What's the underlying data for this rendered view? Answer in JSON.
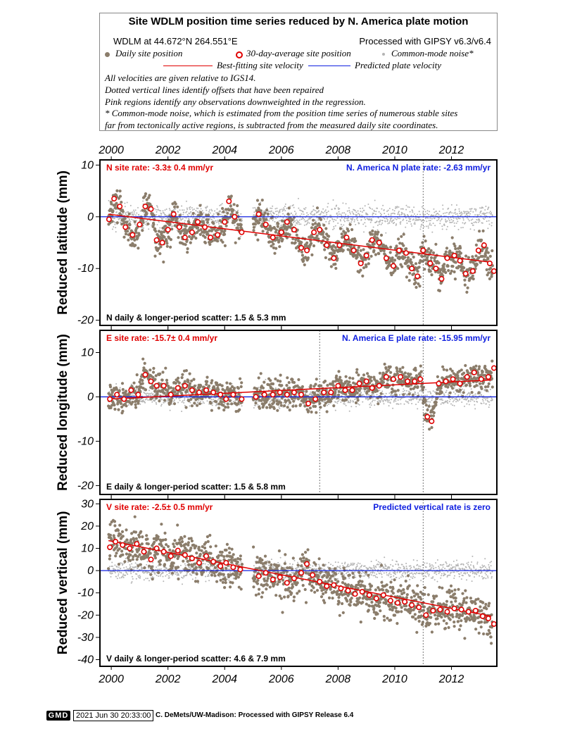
{
  "header": {
    "title": "Site WDLM position time series reduced by N. America plate motion",
    "location": "WDLM at 44.672°N 264.551°E",
    "processed": "Processed with GIPSY v6.3/v6.4",
    "legend_daily": "Daily site position",
    "legend_avg": "30-day-average site position",
    "legend_cm": "Common-mode noise*",
    "legend_fit": "Best-fitting site velocity",
    "legend_pred": "Predicted plate velocity",
    "note1": "All velocities are given relative to IGS14.",
    "note2": "Dotted vertical lines identify offsets that have been repaired",
    "note3": "Pink regions identify any observations downweighted in the regression.",
    "note4": "* Common-mode noise, which is estimated from the position time series of numerous stable sites",
    "note5": "far from tectonically active regions, is subtracted from the measured daily site coordinates."
  },
  "footer": {
    "badge": "GMD",
    "date": "2021 Jun 30 20:33:00",
    "credit": "C. DeMets/UW-Madison: Processed with GIPSY Release 6.4"
  },
  "colors": {
    "daily": "#8b7d6b",
    "common_mode": "#b4b4b4",
    "fit": "#e00000",
    "predicted": "#1020e0",
    "avg_fill": "#ffffff",
    "avg_stroke": "#e00000"
  },
  "chart_data": [
    {
      "type": "scatter",
      "component": "N",
      "ylabel": "Reduced latitude (mm)",
      "xlim": [
        1999.6,
        2013.6
      ],
      "ylim": [
        -21,
        11
      ],
      "yticks": [
        10,
        0,
        -10,
        -20
      ],
      "xticks": [
        2000,
        2002,
        2004,
        2006,
        2008,
        2010,
        2012
      ],
      "site_rate_label": "N site rate:  -3.3± 0.4 mm/yr",
      "plate_rate_label": "N. America N plate rate: -2.63 mm/yr",
      "scatter_label": "N daily & longer-period scatter:   1.5 &   5.3 mm",
      "offsets": [
        2011.0
      ],
      "fit_line": {
        "x": [
          1999.9,
          2013.4
        ],
        "y": [
          0.5,
          -8.8
        ]
      },
      "predicted_line": {
        "y": 0
      },
      "avg_points": [
        [
          1999.92,
          -0.5
        ],
        [
          2000.1,
          3.5
        ],
        [
          2000.3,
          2.0
        ],
        [
          2000.5,
          -2.0
        ],
        [
          2000.75,
          -3.5
        ],
        [
          2001.0,
          -1.5
        ],
        [
          2001.2,
          2.0
        ],
        [
          2001.4,
          1.5
        ],
        [
          2001.6,
          -4.5
        ],
        [
          2001.8,
          -5.0
        ],
        [
          2002.0,
          -2.5
        ],
        [
          2002.2,
          0.5
        ],
        [
          2002.4,
          -2.0
        ],
        [
          2002.6,
          -4.0
        ],
        [
          2002.85,
          -3.0
        ],
        [
          2003.05,
          -1.0
        ],
        [
          2003.3,
          -2.0
        ],
        [
          2003.5,
          -4.0
        ],
        [
          2003.75,
          -3.5
        ],
        [
          2004.0,
          -1.0
        ],
        [
          2004.15,
          3.0
        ],
        [
          2004.35,
          0.0
        ],
        [
          2004.6,
          -3.0
        ],
        [
          2005.2,
          0.5
        ],
        [
          2005.45,
          -1.5
        ],
        [
          2005.7,
          -4.0
        ],
        [
          2006.0,
          -3.0
        ],
        [
          2006.2,
          -1.0
        ],
        [
          2006.45,
          -2.5
        ],
        [
          2006.7,
          -6.0
        ],
        [
          2006.9,
          -6.5
        ],
        [
          2007.15,
          -3.0
        ],
        [
          2007.35,
          -2.5
        ],
        [
          2007.6,
          -5.5
        ],
        [
          2007.85,
          -8.0
        ],
        [
          2008.05,
          -5.5
        ],
        [
          2008.3,
          -4.0
        ],
        [
          2008.55,
          -6.5
        ],
        [
          2008.8,
          -9.0
        ],
        [
          2009.0,
          -7.5
        ],
        [
          2009.2,
          -4.5
        ],
        [
          2009.45,
          -5.0
        ],
        [
          2009.7,
          -8.0
        ],
        [
          2009.95,
          -9.5
        ],
        [
          2010.15,
          -6.5
        ],
        [
          2010.4,
          -7.0
        ],
        [
          2010.6,
          -10.0
        ],
        [
          2010.8,
          -11.5
        ],
        [
          2011.0,
          -6.5
        ],
        [
          2011.25,
          -9.0
        ],
        [
          2011.45,
          -10.0
        ],
        [
          2011.65,
          -12.0
        ],
        [
          2011.85,
          -8.0
        ],
        [
          2012.1,
          -7.5
        ],
        [
          2012.3,
          -8.5
        ],
        [
          2012.5,
          -11.0
        ],
        [
          2012.75,
          -10.5
        ],
        [
          2012.95,
          -6.5
        ],
        [
          2013.15,
          -5.5
        ],
        [
          2013.35,
          -9.0
        ],
        [
          2013.5,
          -10.5
        ]
      ]
    },
    {
      "type": "scatter",
      "component": "E",
      "ylabel": "Reduced longitude (mm)",
      "xlim": [
        1999.6,
        2013.6
      ],
      "ylim": [
        -22,
        15
      ],
      "yticks": [
        10,
        0,
        -10,
        -20
      ],
      "xticks": [
        2000,
        2002,
        2004,
        2006,
        2008,
        2010,
        2012
      ],
      "site_rate_label": "E site rate:  -15.7± 0.4 mm/yr",
      "plate_rate_label": "N. America E plate rate: -15.95 mm/yr",
      "scatter_label": "E daily & longer-period scatter:   1.5 &   5.8 mm",
      "offsets": [
        2007.35,
        2011.0
      ],
      "fit_line": {
        "x": [
          1999.9,
          2013.4
        ],
        "y": [
          -0.5,
          3.8
        ]
      },
      "predicted_line": {
        "y": 0
      },
      "avg_points": [
        [
          1999.95,
          -0.5
        ],
        [
          2000.2,
          0.5
        ],
        [
          2000.45,
          -0.5
        ],
        [
          2000.7,
          1.5
        ],
        [
          2000.95,
          0.5
        ],
        [
          2001.2,
          5.0
        ],
        [
          2001.4,
          3.5
        ],
        [
          2001.6,
          2.5
        ],
        [
          2001.85,
          2.5
        ],
        [
          2002.1,
          0.5
        ],
        [
          2002.35,
          2.0
        ],
        [
          2002.6,
          2.5
        ],
        [
          2002.85,
          1.5
        ],
        [
          2003.1,
          1.0
        ],
        [
          2003.35,
          1.5
        ],
        [
          2003.6,
          1.0
        ],
        [
          2003.85,
          0.5
        ],
        [
          2004.05,
          -0.5
        ],
        [
          2004.3,
          0.5
        ],
        [
          2004.6,
          -0.5
        ],
        [
          2005.1,
          0.0
        ],
        [
          2005.4,
          0.5
        ],
        [
          2005.7,
          0.5
        ],
        [
          2005.95,
          1.0
        ],
        [
          2006.2,
          0.5
        ],
        [
          2006.45,
          1.0
        ],
        [
          2006.7,
          0.5
        ],
        [
          2006.95,
          -1.5
        ],
        [
          2007.2,
          -0.5
        ],
        [
          2007.5,
          1.0
        ],
        [
          2007.75,
          1.0
        ],
        [
          2008.0,
          2.5
        ],
        [
          2008.25,
          1.5
        ],
        [
          2008.5,
          1.5
        ],
        [
          2008.75,
          3.0
        ],
        [
          2009.0,
          3.5
        ],
        [
          2009.2,
          2.0
        ],
        [
          2009.45,
          2.5
        ],
        [
          2009.7,
          4.5
        ],
        [
          2009.95,
          4.0
        ],
        [
          2010.2,
          4.5
        ],
        [
          2010.45,
          3.5
        ],
        [
          2010.7,
          3.5
        ],
        [
          2010.9,
          4.0
        ],
        [
          2011.15,
          -4.5
        ],
        [
          2011.3,
          -5.5
        ],
        [
          2011.55,
          3.0
        ],
        [
          2011.8,
          3.5
        ],
        [
          2012.05,
          4.0
        ],
        [
          2012.3,
          3.0
        ],
        [
          2012.55,
          4.5
        ],
        [
          2012.8,
          5.5
        ],
        [
          2013.05,
          4.0
        ],
        [
          2013.3,
          4.5
        ],
        [
          2013.5,
          6.5
        ]
      ]
    },
    {
      "type": "scatter",
      "component": "V",
      "ylabel": "Reduced vertical (mm)",
      "xlim": [
        1999.6,
        2013.6
      ],
      "ylim": [
        -43,
        32
      ],
      "yticks": [
        30,
        20,
        10,
        0,
        -10,
        -20,
        -30,
        -40
      ],
      "xticks": [
        2000,
        2002,
        2004,
        2006,
        2008,
        2010,
        2012
      ],
      "site_rate_label": "V site rate:  -2.5± 0.5 mm/yr",
      "plate_rate_label": "Predicted vertical rate is zero",
      "scatter_label": "V daily & longer-period scatter:   4.6 &   7.9 mm",
      "offsets": [
        2011.0
      ],
      "fit_line": {
        "x": [
          1999.9,
          2013.4
        ],
        "y": [
          13.5,
          -20.5
        ]
      },
      "predicted_line": {
        "y": 0
      },
      "avg_points": [
        [
          1999.95,
          10.5
        ],
        [
          2000.15,
          13.0
        ],
        [
          2000.4,
          11.5
        ],
        [
          2000.65,
          10.0
        ],
        [
          2000.9,
          12.0
        ],
        [
          2001.15,
          8.5
        ],
        [
          2001.4,
          5.0
        ],
        [
          2001.6,
          10.0
        ],
        [
          2001.85,
          8.5
        ],
        [
          2002.1,
          6.5
        ],
        [
          2002.35,
          9.0
        ],
        [
          2002.6,
          7.0
        ],
        [
          2002.85,
          5.5
        ],
        [
          2003.1,
          3.5
        ],
        [
          2003.35,
          6.5
        ],
        [
          2003.6,
          4.0
        ],
        [
          2003.85,
          2.0
        ],
        [
          2004.05,
          3.5
        ],
        [
          2004.3,
          1.5
        ],
        [
          2004.55,
          0.5
        ],
        [
          2005.2,
          -2.5
        ],
        [
          2005.45,
          -1.0
        ],
        [
          2005.7,
          -4.0
        ],
        [
          2005.95,
          -3.0
        ],
        [
          2006.2,
          -5.5
        ],
        [
          2006.45,
          -3.5
        ],
        [
          2006.7,
          -1.0
        ],
        [
          2006.9,
          3.0
        ],
        [
          2007.1,
          -2.0
        ],
        [
          2007.35,
          -5.0
        ],
        [
          2007.6,
          -7.0
        ],
        [
          2007.85,
          -6.5
        ],
        [
          2008.1,
          -8.0
        ],
        [
          2008.35,
          -9.0
        ],
        [
          2008.6,
          -10.5
        ],
        [
          2008.85,
          -9.5
        ],
        [
          2009.1,
          -11.0
        ],
        [
          2009.35,
          -12.5
        ],
        [
          2009.6,
          -11.0
        ],
        [
          2009.85,
          -13.5
        ],
        [
          2010.1,
          -14.5
        ],
        [
          2010.35,
          -14.0
        ],
        [
          2010.6,
          -15.5
        ],
        [
          2010.85,
          -16.5
        ],
        [
          2011.1,
          -20.0
        ],
        [
          2011.35,
          -18.0
        ],
        [
          2011.6,
          -17.5
        ],
        [
          2011.85,
          -18.5
        ],
        [
          2012.1,
          -17.0
        ],
        [
          2012.35,
          -17.5
        ],
        [
          2012.6,
          -18.5
        ],
        [
          2012.85,
          -18.0
        ],
        [
          2013.1,
          -20.5
        ],
        [
          2013.3,
          -21.5
        ],
        [
          2013.5,
          -24.0
        ]
      ]
    }
  ]
}
